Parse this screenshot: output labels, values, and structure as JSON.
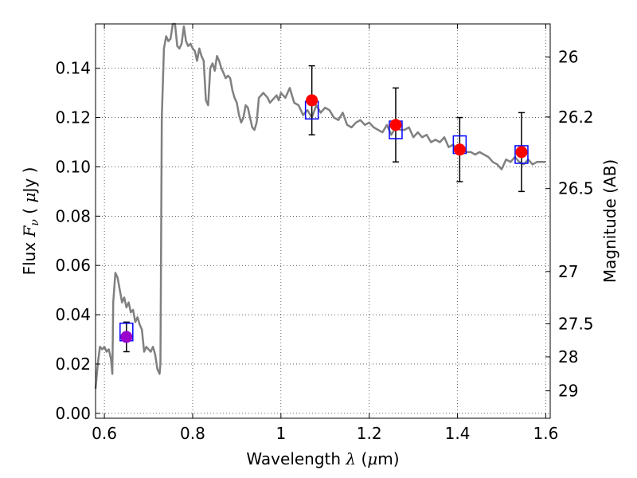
{
  "chart_data": {
    "type": "scatter",
    "title": "",
    "xlabel": "Wavelength  λ (μm)",
    "ylabel": "Flux  F_ν  ( μJy )",
    "ylabel_right": "Magnitude (AB)",
    "xlim": [
      0.58,
      1.61
    ],
    "ylim": [
      -0.002,
      0.158
    ],
    "x_ticks": [
      0.6,
      0.8,
      1.0,
      1.2,
      1.4,
      1.6
    ],
    "x_tick_labels": [
      "0.6",
      "0.8",
      "1",
      "1.2",
      "1.4",
      "1.6"
    ],
    "y_ticks": [
      0.0,
      0.02,
      0.04,
      0.06,
      0.08,
      0.1,
      0.12,
      0.14
    ],
    "y_tick_labels": [
      "0.00",
      "0.02",
      "0.04",
      "0.06",
      "0.08",
      "0.10",
      "0.12",
      "0.14"
    ],
    "right_ticks_mag": [
      26,
      26.2,
      26.5,
      27,
      27.5,
      28,
      29
    ],
    "right_tick_labels": [
      "26",
      "26.2",
      "26.5",
      "27",
      "27.5",
      "28",
      "29"
    ],
    "grid": true,
    "series": [
      {
        "type": "line",
        "color": "#808080",
        "x": [
          0.58,
          0.585,
          0.59,
          0.595,
          0.6,
          0.605,
          0.61,
          0.615,
          0.618,
          0.62,
          0.625,
          0.63,
          0.635,
          0.64,
          0.645,
          0.65,
          0.655,
          0.66,
          0.665,
          0.67,
          0.675,
          0.68,
          0.685,
          0.69,
          0.695,
          0.7,
          0.705,
          0.71,
          0.715,
          0.72,
          0.725,
          0.727,
          0.73,
          0.735,
          0.74,
          0.745,
          0.75,
          0.755,
          0.76,
          0.765,
          0.77,
          0.775,
          0.78,
          0.785,
          0.79,
          0.795,
          0.8,
          0.805,
          0.81,
          0.815,
          0.82,
          0.825,
          0.83,
          0.835,
          0.84,
          0.845,
          0.85,
          0.855,
          0.86,
          0.865,
          0.87,
          0.875,
          0.88,
          0.885,
          0.89,
          0.895,
          0.9,
          0.905,
          0.91,
          0.915,
          0.92,
          0.925,
          0.93,
          0.935,
          0.94,
          0.945,
          0.95,
          0.96,
          0.97,
          0.975,
          0.98,
          0.985,
          0.99,
          0.995,
          1.0,
          1.01,
          1.02,
          1.03,
          1.04,
          1.05,
          1.06,
          1.07,
          1.08,
          1.09,
          1.1,
          1.11,
          1.12,
          1.13,
          1.14,
          1.15,
          1.16,
          1.17,
          1.18,
          1.19,
          1.2,
          1.21,
          1.22,
          1.23,
          1.24,
          1.25,
          1.26,
          1.27,
          1.28,
          1.29,
          1.3,
          1.31,
          1.32,
          1.33,
          1.34,
          1.35,
          1.36,
          1.37,
          1.38,
          1.39,
          1.4,
          1.41,
          1.42,
          1.43,
          1.44,
          1.45,
          1.46,
          1.47,
          1.48,
          1.49,
          1.5,
          1.51,
          1.52,
          1.53,
          1.54,
          1.55,
          1.56,
          1.57,
          1.58,
          1.59,
          1.6
        ],
        "y": [
          0.01,
          0.02,
          0.027,
          0.026,
          0.027,
          0.025,
          0.026,
          0.022,
          0.016,
          0.045,
          0.057,
          0.055,
          0.05,
          0.045,
          0.047,
          0.043,
          0.045,
          0.041,
          0.042,
          0.037,
          0.039,
          0.036,
          0.034,
          0.025,
          0.027,
          0.026,
          0.025,
          0.027,
          0.024,
          0.018,
          0.016,
          0.02,
          0.12,
          0.148,
          0.153,
          0.151,
          0.152,
          0.158,
          0.158,
          0.149,
          0.148,
          0.15,
          0.157,
          0.151,
          0.149,
          0.15,
          0.148,
          0.147,
          0.143,
          0.148,
          0.145,
          0.143,
          0.127,
          0.125,
          0.14,
          0.142,
          0.139,
          0.145,
          0.143,
          0.14,
          0.138,
          0.136,
          0.137,
          0.136,
          0.131,
          0.128,
          0.126,
          0.121,
          0.118,
          0.12,
          0.125,
          0.124,
          0.12,
          0.116,
          0.115,
          0.118,
          0.128,
          0.13,
          0.128,
          0.126,
          0.127,
          0.128,
          0.129,
          0.127,
          0.13,
          0.128,
          0.132,
          0.126,
          0.125,
          0.121,
          0.123,
          0.12,
          0.125,
          0.122,
          0.124,
          0.123,
          0.12,
          0.119,
          0.122,
          0.117,
          0.116,
          0.118,
          0.119,
          0.117,
          0.118,
          0.116,
          0.115,
          0.114,
          0.117,
          0.113,
          0.116,
          0.115,
          0.115,
          0.116,
          0.112,
          0.114,
          0.112,
          0.113,
          0.11,
          0.111,
          0.11,
          0.112,
          0.108,
          0.109,
          0.107,
          0.108,
          0.106,
          0.106,
          0.105,
          0.106,
          0.105,
          0.104,
          0.102,
          0.101,
          0.099,
          0.103,
          0.102,
          0.104,
          0.102,
          0.101,
          0.103,
          0.101,
          0.102,
          0.102,
          0.102
        ]
      },
      {
        "type": "errorbar",
        "color": "#000000",
        "x": [
          0.65,
          1.07,
          1.26,
          1.405,
          1.545
        ],
        "y": [
          0.031,
          0.127,
          0.117,
          0.107,
          0.106
        ],
        "yerr_low": [
          0.006,
          0.014,
          0.015,
          0.013,
          0.016
        ],
        "yerr_high": [
          0.006,
          0.014,
          0.015,
          0.013,
          0.016
        ]
      },
      {
        "type": "marker-square",
        "color": "#0000ff",
        "x": [
          0.65,
          1.07,
          1.26,
          1.405,
          1.545
        ],
        "y": [
          0.033,
          0.123,
          0.115,
          0.109,
          0.105
        ]
      },
      {
        "type": "marker-circle",
        "color": "#ff0000",
        "x": [
          1.07,
          1.26,
          1.405,
          1.545
        ],
        "y": [
          0.127,
          0.117,
          0.107,
          0.106
        ]
      },
      {
        "type": "marker-circle",
        "color": "#9900cc",
        "x": [
          0.65
        ],
        "y": [
          0.031
        ]
      }
    ]
  }
}
